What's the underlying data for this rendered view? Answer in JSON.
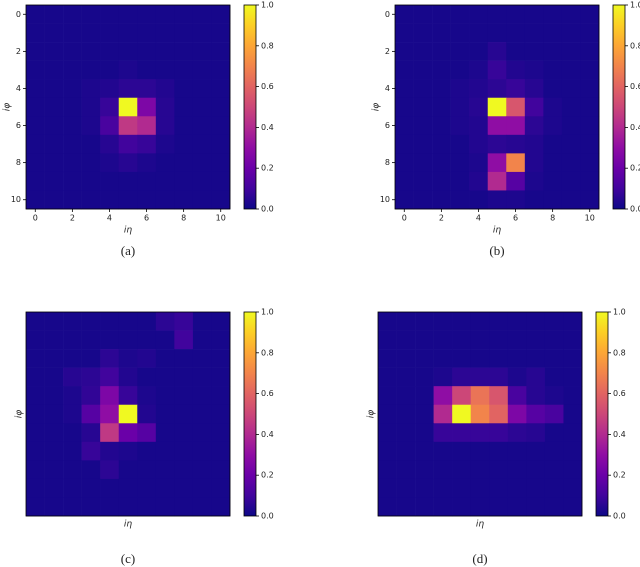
{
  "chart_data": [
    {
      "type": "heatmap",
      "caption": "(a)",
      "xlabel": "iη",
      "ylabel": "iφ",
      "colormap": "plasma",
      "clim": [
        0,
        1
      ],
      "xlim": [
        -0.5,
        10.5
      ],
      "ylim": [
        10.5,
        -0.5
      ],
      "xticks": [
        0,
        2,
        4,
        6,
        8,
        10
      ],
      "yticks": [
        0,
        2,
        4,
        6,
        8,
        10
      ],
      "colorbar_ticks": [
        {
          "value": 0,
          "label": "0.0"
        },
        0.2,
        0.4,
        0.6,
        0.8,
        {
          "value": 1,
          "label": "1.0"
        }
      ],
      "z": [
        [
          0.02,
          0.02,
          0.02,
          0.02,
          0.02,
          0.02,
          0.02,
          0.02,
          0.02,
          0.02,
          0.02
        ],
        [
          0.02,
          0.02,
          0.02,
          0.02,
          0.02,
          0.02,
          0.02,
          0.02,
          0.02,
          0.02,
          0.02
        ],
        [
          0.02,
          0.02,
          0.02,
          0.02,
          0.02,
          0.02,
          0.02,
          0.02,
          0.02,
          0.02,
          0.02
        ],
        [
          0.02,
          0.02,
          0.02,
          0.02,
          0.02,
          0.03,
          0.02,
          0.02,
          0.02,
          0.02,
          0.02
        ],
        [
          0.02,
          0.02,
          0.02,
          0.03,
          0.04,
          0.06,
          0.06,
          0.04,
          0.02,
          0.02,
          0.02
        ],
        [
          0.02,
          0.02,
          0.02,
          0.03,
          0.08,
          1.0,
          0.25,
          0.05,
          0.02,
          0.02,
          0.02
        ],
        [
          0.02,
          0.02,
          0.02,
          0.03,
          0.12,
          0.45,
          0.4,
          0.05,
          0.02,
          0.02,
          0.02
        ],
        [
          0.02,
          0.02,
          0.02,
          0.02,
          0.05,
          0.1,
          0.08,
          0.03,
          0.02,
          0.02,
          0.02
        ],
        [
          0.02,
          0.02,
          0.02,
          0.02,
          0.03,
          0.05,
          0.03,
          0.02,
          0.02,
          0.02,
          0.02
        ],
        [
          0.02,
          0.02,
          0.02,
          0.02,
          0.02,
          0.02,
          0.02,
          0.02,
          0.02,
          0.02,
          0.02
        ],
        [
          0.02,
          0.02,
          0.02,
          0.02,
          0.02,
          0.02,
          0.02,
          0.02,
          0.02,
          0.02,
          0.02
        ]
      ]
    },
    {
      "type": "heatmap",
      "caption": "(b)",
      "xlabel": "iη",
      "ylabel": "iφ",
      "colormap": "plasma",
      "clim": [
        0,
        1
      ],
      "xlim": [
        -0.5,
        10.5
      ],
      "ylim": [
        10.5,
        -0.5
      ],
      "xticks": [
        0,
        2,
        4,
        6,
        8,
        10
      ],
      "yticks": [
        0,
        2,
        4,
        6,
        8,
        10
      ],
      "colorbar_ticks": [
        {
          "value": 0,
          "label": "0.0"
        },
        0.2,
        0.4,
        0.6,
        0.8,
        {
          "value": 1,
          "label": "1.0"
        }
      ],
      "z": [
        [
          0.02,
          0.02,
          0.02,
          0.02,
          0.02,
          0.02,
          0.02,
          0.02,
          0.02,
          0.02,
          0.02
        ],
        [
          0.02,
          0.02,
          0.02,
          0.02,
          0.02,
          0.02,
          0.02,
          0.02,
          0.02,
          0.02,
          0.02
        ],
        [
          0.02,
          0.02,
          0.02,
          0.02,
          0.02,
          0.05,
          0.02,
          0.02,
          0.02,
          0.02,
          0.02
        ],
        [
          0.02,
          0.02,
          0.02,
          0.02,
          0.03,
          0.08,
          0.04,
          0.03,
          0.02,
          0.02,
          0.02
        ],
        [
          0.02,
          0.02,
          0.02,
          0.03,
          0.04,
          0.06,
          0.08,
          0.05,
          0.02,
          0.02,
          0.02
        ],
        [
          0.02,
          0.02,
          0.02,
          0.03,
          0.05,
          1.0,
          0.55,
          0.1,
          0.03,
          0.02,
          0.02
        ],
        [
          0.02,
          0.02,
          0.02,
          0.03,
          0.04,
          0.3,
          0.3,
          0.06,
          0.03,
          0.02,
          0.02
        ],
        [
          0.02,
          0.02,
          0.02,
          0.02,
          0.04,
          0.06,
          0.05,
          0.04,
          0.02,
          0.02,
          0.02
        ],
        [
          0.02,
          0.02,
          0.02,
          0.02,
          0.03,
          0.3,
          0.7,
          0.04,
          0.02,
          0.02,
          0.02
        ],
        [
          0.02,
          0.02,
          0.02,
          0.02,
          0.04,
          0.4,
          0.15,
          0.03,
          0.02,
          0.02,
          0.02
        ],
        [
          0.02,
          0.02,
          0.02,
          0.02,
          0.02,
          0.03,
          0.03,
          0.02,
          0.02,
          0.02,
          0.02
        ]
      ]
    },
    {
      "type": "heatmap",
      "caption": "(c)",
      "xlabel": "iη",
      "ylabel": "iφ",
      "colormap": "plasma",
      "clim": [
        0,
        1
      ],
      "xlim": [
        -0.5,
        10.5
      ],
      "ylim": [
        10.5,
        -0.5
      ],
      "colorbar_ticks": [
        {
          "value": 0,
          "label": "0.0"
        },
        0.2,
        0.4,
        0.6,
        0.8,
        {
          "value": 1,
          "label": "1.0"
        }
      ],
      "z": [
        [
          0.02,
          0.02,
          0.02,
          0.02,
          0.02,
          0.02,
          0.02,
          0.06,
          0.08,
          0.02,
          0.02
        ],
        [
          0.02,
          0.02,
          0.02,
          0.02,
          0.02,
          0.02,
          0.02,
          0.02,
          0.1,
          0.02,
          0.02
        ],
        [
          0.02,
          0.02,
          0.02,
          0.02,
          0.06,
          0.03,
          0.04,
          0.02,
          0.02,
          0.02,
          0.02
        ],
        [
          0.02,
          0.02,
          0.05,
          0.06,
          0.1,
          0.04,
          0.02,
          0.02,
          0.02,
          0.02,
          0.02
        ],
        [
          0.02,
          0.02,
          0.03,
          0.07,
          0.25,
          0.08,
          0.03,
          0.02,
          0.02,
          0.02,
          0.02
        ],
        [
          0.02,
          0.02,
          0.03,
          0.15,
          0.3,
          1.0,
          0.04,
          0.02,
          0.02,
          0.02,
          0.02
        ],
        [
          0.02,
          0.02,
          0.02,
          0.05,
          0.45,
          0.2,
          0.15,
          0.02,
          0.02,
          0.02,
          0.02
        ],
        [
          0.02,
          0.02,
          0.02,
          0.08,
          0.04,
          0.03,
          0.02,
          0.02,
          0.02,
          0.02,
          0.02
        ],
        [
          0.02,
          0.02,
          0.02,
          0.02,
          0.06,
          0.02,
          0.02,
          0.02,
          0.02,
          0.02,
          0.02
        ],
        [
          0.02,
          0.02,
          0.02,
          0.02,
          0.02,
          0.02,
          0.02,
          0.02,
          0.02,
          0.02,
          0.02
        ],
        [
          0.02,
          0.02,
          0.02,
          0.02,
          0.02,
          0.02,
          0.02,
          0.02,
          0.02,
          0.02,
          0.02
        ]
      ]
    },
    {
      "type": "heatmap",
      "caption": "(d)",
      "xlabel": "iη",
      "ylabel": "iφ",
      "colormap": "plasma",
      "clim": [
        0,
        1
      ],
      "xlim": [
        -0.5,
        10.5
      ],
      "ylim": [
        10.5,
        -0.5
      ],
      "colorbar_ticks": [
        {
          "value": 0,
          "label": "0.0"
        },
        0.2,
        0.4,
        0.6,
        0.8,
        {
          "value": 1,
          "label": "1.0"
        }
      ],
      "z": [
        [
          0.02,
          0.02,
          0.02,
          0.02,
          0.02,
          0.02,
          0.02,
          0.02,
          0.02,
          0.02,
          0.02
        ],
        [
          0.02,
          0.02,
          0.02,
          0.02,
          0.02,
          0.02,
          0.02,
          0.02,
          0.02,
          0.02,
          0.02
        ],
        [
          0.02,
          0.02,
          0.02,
          0.02,
          0.02,
          0.02,
          0.02,
          0.02,
          0.02,
          0.02,
          0.02
        ],
        [
          0.02,
          0.02,
          0.02,
          0.03,
          0.06,
          0.06,
          0.06,
          0.03,
          0.05,
          0.02,
          0.02
        ],
        [
          0.02,
          0.02,
          0.02,
          0.3,
          0.5,
          0.65,
          0.55,
          0.12,
          0.05,
          0.03,
          0.02
        ],
        [
          0.02,
          0.02,
          0.02,
          0.4,
          1.0,
          0.7,
          0.6,
          0.25,
          0.15,
          0.12,
          0.02
        ],
        [
          0.02,
          0.02,
          0.02,
          0.08,
          0.08,
          0.08,
          0.08,
          0.06,
          0.05,
          0.02,
          0.02
        ],
        [
          0.02,
          0.02,
          0.02,
          0.02,
          0.02,
          0.02,
          0.02,
          0.02,
          0.02,
          0.02,
          0.02
        ],
        [
          0.02,
          0.02,
          0.02,
          0.02,
          0.02,
          0.02,
          0.02,
          0.02,
          0.02,
          0.02,
          0.02
        ],
        [
          0.02,
          0.02,
          0.02,
          0.02,
          0.02,
          0.02,
          0.02,
          0.02,
          0.02,
          0.02,
          0.02
        ],
        [
          0.02,
          0.02,
          0.02,
          0.02,
          0.02,
          0.02,
          0.02,
          0.02,
          0.02,
          0.02,
          0.02
        ]
      ]
    }
  ]
}
